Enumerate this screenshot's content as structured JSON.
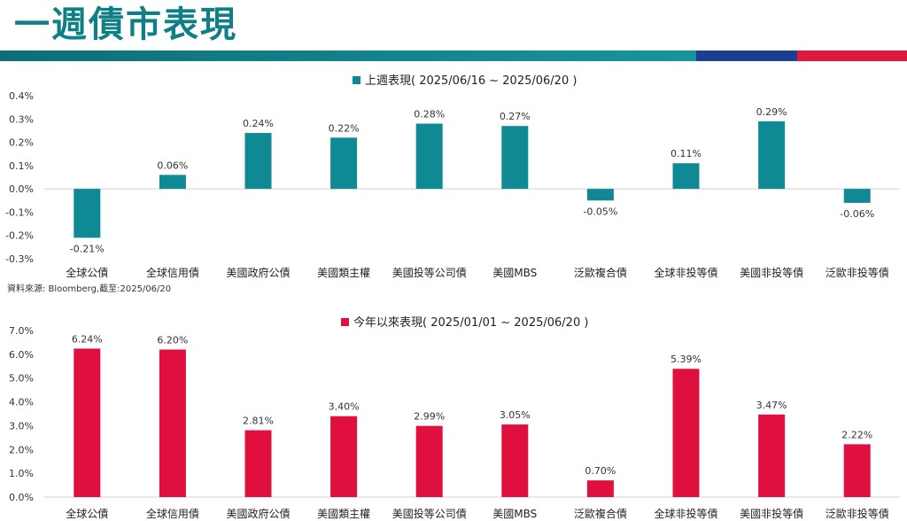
{
  "page": {
    "title": "一週債市表現"
  },
  "colors": {
    "title": "#0f7f86",
    "stripe_teal": "#0f7f86",
    "stripe_blue": "#1a3f94",
    "stripe_red": "#e2173f",
    "bar_teal": "#0f8a95",
    "bar_red": "#e0103e"
  },
  "source_note": "資料來源: Bloomberg,截至:2025/06/20",
  "chart_data": [
    {
      "type": "bar",
      "legend": "上週表現( 2025/06/16 ~ 2025/06/20 )",
      "categories": [
        "全球公債",
        "全球信用債",
        "美國政府公債",
        "美國類主權",
        "美國投等公司債",
        "美國MBS",
        "泛歐複合債",
        "全球非投等債",
        "美國非投等債",
        "泛歐非投等債"
      ],
      "values": [
        -0.21,
        0.06,
        0.24,
        0.22,
        0.28,
        0.27,
        -0.05,
        0.11,
        0.29,
        -0.06
      ],
      "value_labels": [
        "-0.21%",
        "0.06%",
        "0.24%",
        "0.22%",
        "0.28%",
        "0.27%",
        "-0.05%",
        "0.11%",
        "0.29%",
        "-0.06%"
      ],
      "yticks": [
        "0.4%",
        "0.3%",
        "0.2%",
        "0.1%",
        "0.0%",
        "-0.1%",
        "-0.2%",
        "-0.3%"
      ],
      "ylim": [
        -0.3,
        0.4
      ],
      "color": "#0f8a95",
      "legend_position": "top-center"
    },
    {
      "type": "bar",
      "legend": "今年以來表現( 2025/01/01 ~ 2025/06/20 )",
      "categories": [
        "全球公債",
        "全球信用債",
        "美國政府公債",
        "美國類主權",
        "美國投等公司債",
        "美國MBS",
        "泛歐複合債",
        "全球非投等債",
        "美國非投等債",
        "泛歐非投等債"
      ],
      "values": [
        6.24,
        6.2,
        2.81,
        3.4,
        2.99,
        3.05,
        0.7,
        5.39,
        3.47,
        2.22
      ],
      "value_labels": [
        "6.24%",
        "6.20%",
        "2.81%",
        "3.40%",
        "2.99%",
        "3.05%",
        "0.70%",
        "5.39%",
        "3.47%",
        "2.22%"
      ],
      "yticks": [
        "7.0%",
        "6.0%",
        "5.0%",
        "4.0%",
        "3.0%",
        "2.0%",
        "1.0%",
        "0.0%"
      ],
      "ylim": [
        0,
        7.0
      ],
      "color": "#e0103e",
      "legend_position": "top-center"
    }
  ]
}
